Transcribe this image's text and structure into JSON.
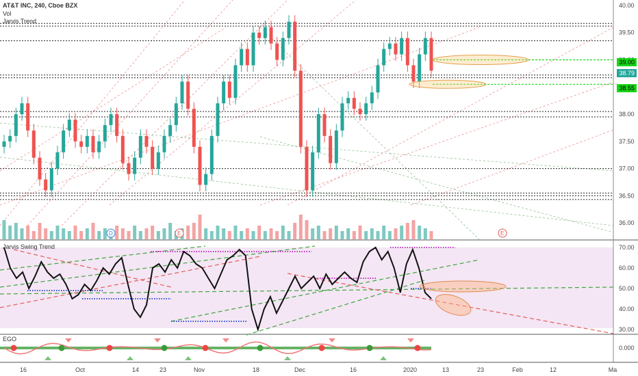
{
  "chart_data": {
    "type": "candlestick",
    "title": "AT&T INC, 240, Cboe BZX",
    "indicators": [
      "Vol",
      "Jarvis Trend"
    ],
    "price_axis": {
      "ticks": [
        "40.00",
        "39.50",
        "39.00",
        "38.50",
        "38.00",
        "37.50",
        "37.00",
        "36.50",
        "36.00"
      ],
      "range": [
        35.7,
        40.1
      ]
    },
    "x_axis": {
      "labels": [
        "16",
        "Oct",
        "14",
        "23",
        "Nov",
        "18",
        "Dec",
        "16",
        "2020",
        "13",
        "23",
        "Feb",
        "12",
        "Ma"
      ]
    },
    "price_badges": [
      {
        "value": "39.00",
        "color": "#18d618"
      },
      {
        "value": "38.79",
        "color": "#26a69a"
      },
      {
        "value": "38.55",
        "color": "#18d618"
      }
    ],
    "candles_close": [
      37.5,
      37.6,
      38.0,
      38.2,
      37.7,
      37.2,
      36.8,
      36.6,
      37.0,
      37.3,
      37.7,
      37.9,
      37.5,
      37.4,
      37.6,
      37.3,
      37.5,
      37.8,
      38.0,
      37.6,
      37.1,
      36.9,
      37.2,
      37.6,
      37.4,
      37.0,
      37.3,
      37.6,
      37.8,
      38.2,
      38.6,
      38.1,
      37.4,
      36.7,
      36.9,
      37.6,
      38.2,
      38.6,
      38.3,
      38.9,
      39.2,
      38.9,
      39.5,
      39.4,
      39.6,
      39.3,
      39.0,
      39.4,
      39.7,
      38.8,
      37.4,
      36.6,
      37.3,
      38.0,
      37.6,
      37.1,
      37.7,
      38.2,
      38.3,
      38.1,
      38.0,
      38.2,
      38.4,
      38.9,
      39.2,
      39.3,
      39.1,
      39.4,
      38.9,
      38.6,
      39.1,
      39.4,
      38.8
    ],
    "volume": [
      0.7,
      0.5,
      0.6,
      0.4,
      0.5,
      0.3,
      0.6,
      0.4,
      0.3,
      0.5,
      0.4,
      0.3,
      0.5,
      0.3,
      0.4,
      0.6,
      0.3,
      0.4,
      0.3,
      0.5,
      0.4,
      0.3,
      0.5,
      0.3,
      0.4,
      0.5,
      0.3,
      0.4,
      0.6,
      0.3,
      0.4,
      0.5,
      0.6,
      0.9,
      0.4,
      0.3,
      0.5,
      0.4,
      0.3,
      0.5,
      0.3,
      0.4,
      0.3,
      0.5,
      0.3,
      0.4,
      0.3,
      0.5,
      0.3,
      0.6,
      0.9,
      0.7,
      0.4,
      0.5,
      0.3,
      0.4,
      0.5,
      0.3,
      0.4,
      0.3,
      0.5,
      0.3,
      0.4,
      0.3,
      0.5,
      0.3,
      0.4,
      0.5,
      0.6,
      0.7,
      0.5,
      0.4,
      0.3
    ],
    "levels": [
      39.67,
      39.62,
      39.35,
      38.72,
      38.67,
      38.05,
      37.95,
      37.0,
      36.55,
      36.5,
      36.43
    ],
    "highlight_levels": [
      39.0,
      38.55
    ],
    "swing": {
      "name": "Jarvis Swing Trend",
      "ticks": [
        "70.00",
        "60.00",
        "50.00",
        "40.00",
        "30.00"
      ],
      "range": [
        28,
        72
      ],
      "values": [
        70,
        60,
        55,
        58,
        50,
        56,
        63,
        58,
        55,
        57,
        52,
        45,
        47,
        52,
        49,
        54,
        60,
        57,
        62,
        65,
        52,
        40,
        36,
        42,
        60,
        62,
        58,
        64,
        60,
        68,
        66,
        62,
        60,
        55,
        50,
        57,
        64,
        66,
        69,
        66,
        40,
        30,
        40,
        46,
        38,
        44,
        50,
        56,
        50,
        53,
        56,
        50,
        57,
        52,
        55,
        58,
        55,
        53,
        63,
        68,
        70,
        64,
        68,
        60,
        48,
        62,
        69,
        60,
        48,
        45
      ]
    },
    "osc": {
      "name": "EGO",
      "ticks": [
        "0.000"
      ]
    }
  }
}
